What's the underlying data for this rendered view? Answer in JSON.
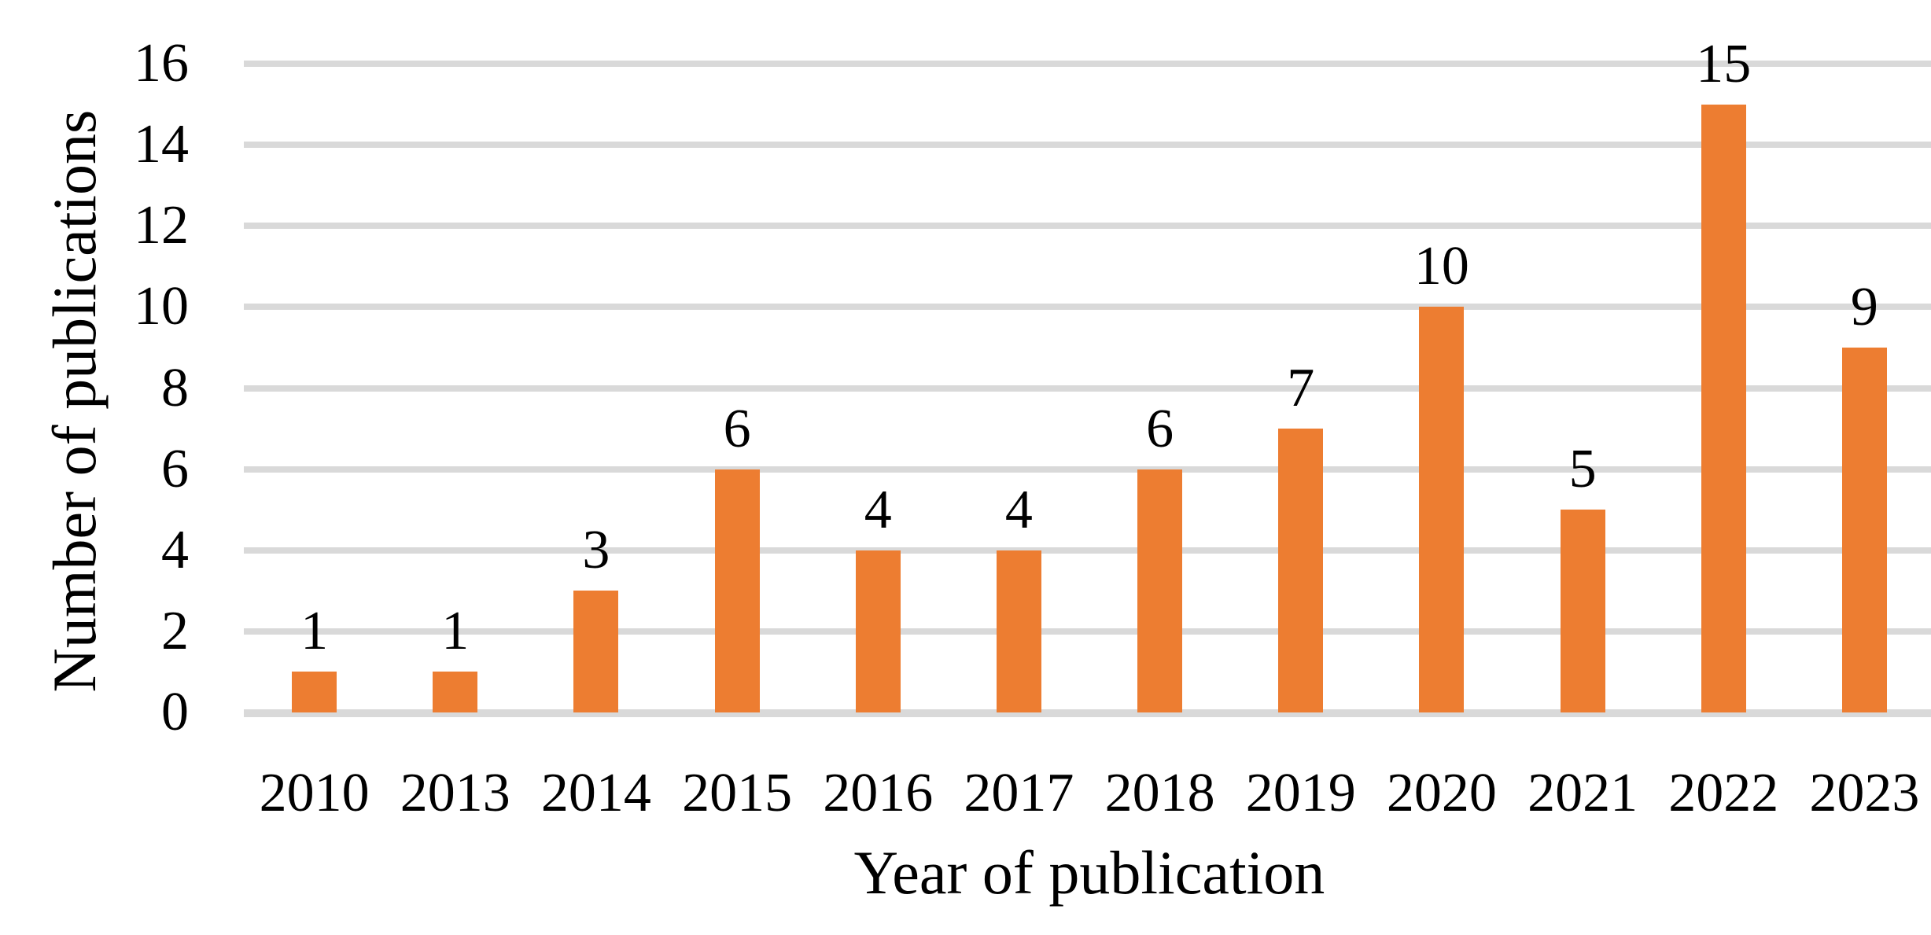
{
  "chart_data": {
    "type": "bar",
    "categories": [
      "2010",
      "2013",
      "2014",
      "2015",
      "2016",
      "2017",
      "2018",
      "2019",
      "2020",
      "2021",
      "2022",
      "2023"
    ],
    "values": [
      1,
      1,
      3,
      6,
      4,
      4,
      6,
      7,
      10,
      5,
      15,
      9
    ],
    "data_labels": [
      "1",
      "1",
      "3",
      "6",
      "4",
      "4",
      "6",
      "7",
      "10",
      "5",
      "15",
      "9"
    ],
    "title": "",
    "xlabel": "Year of publication",
    "ylabel": "Number of publications",
    "ylim": [
      0,
      16
    ],
    "yticks": [
      0,
      2,
      4,
      6,
      8,
      10,
      12,
      14,
      16
    ],
    "grid": true,
    "legend": "none",
    "colors": {
      "bar": "#ED7D31",
      "gridline": "#D9D9D9",
      "text": "#000000",
      "background": "#FFFFFF"
    }
  }
}
